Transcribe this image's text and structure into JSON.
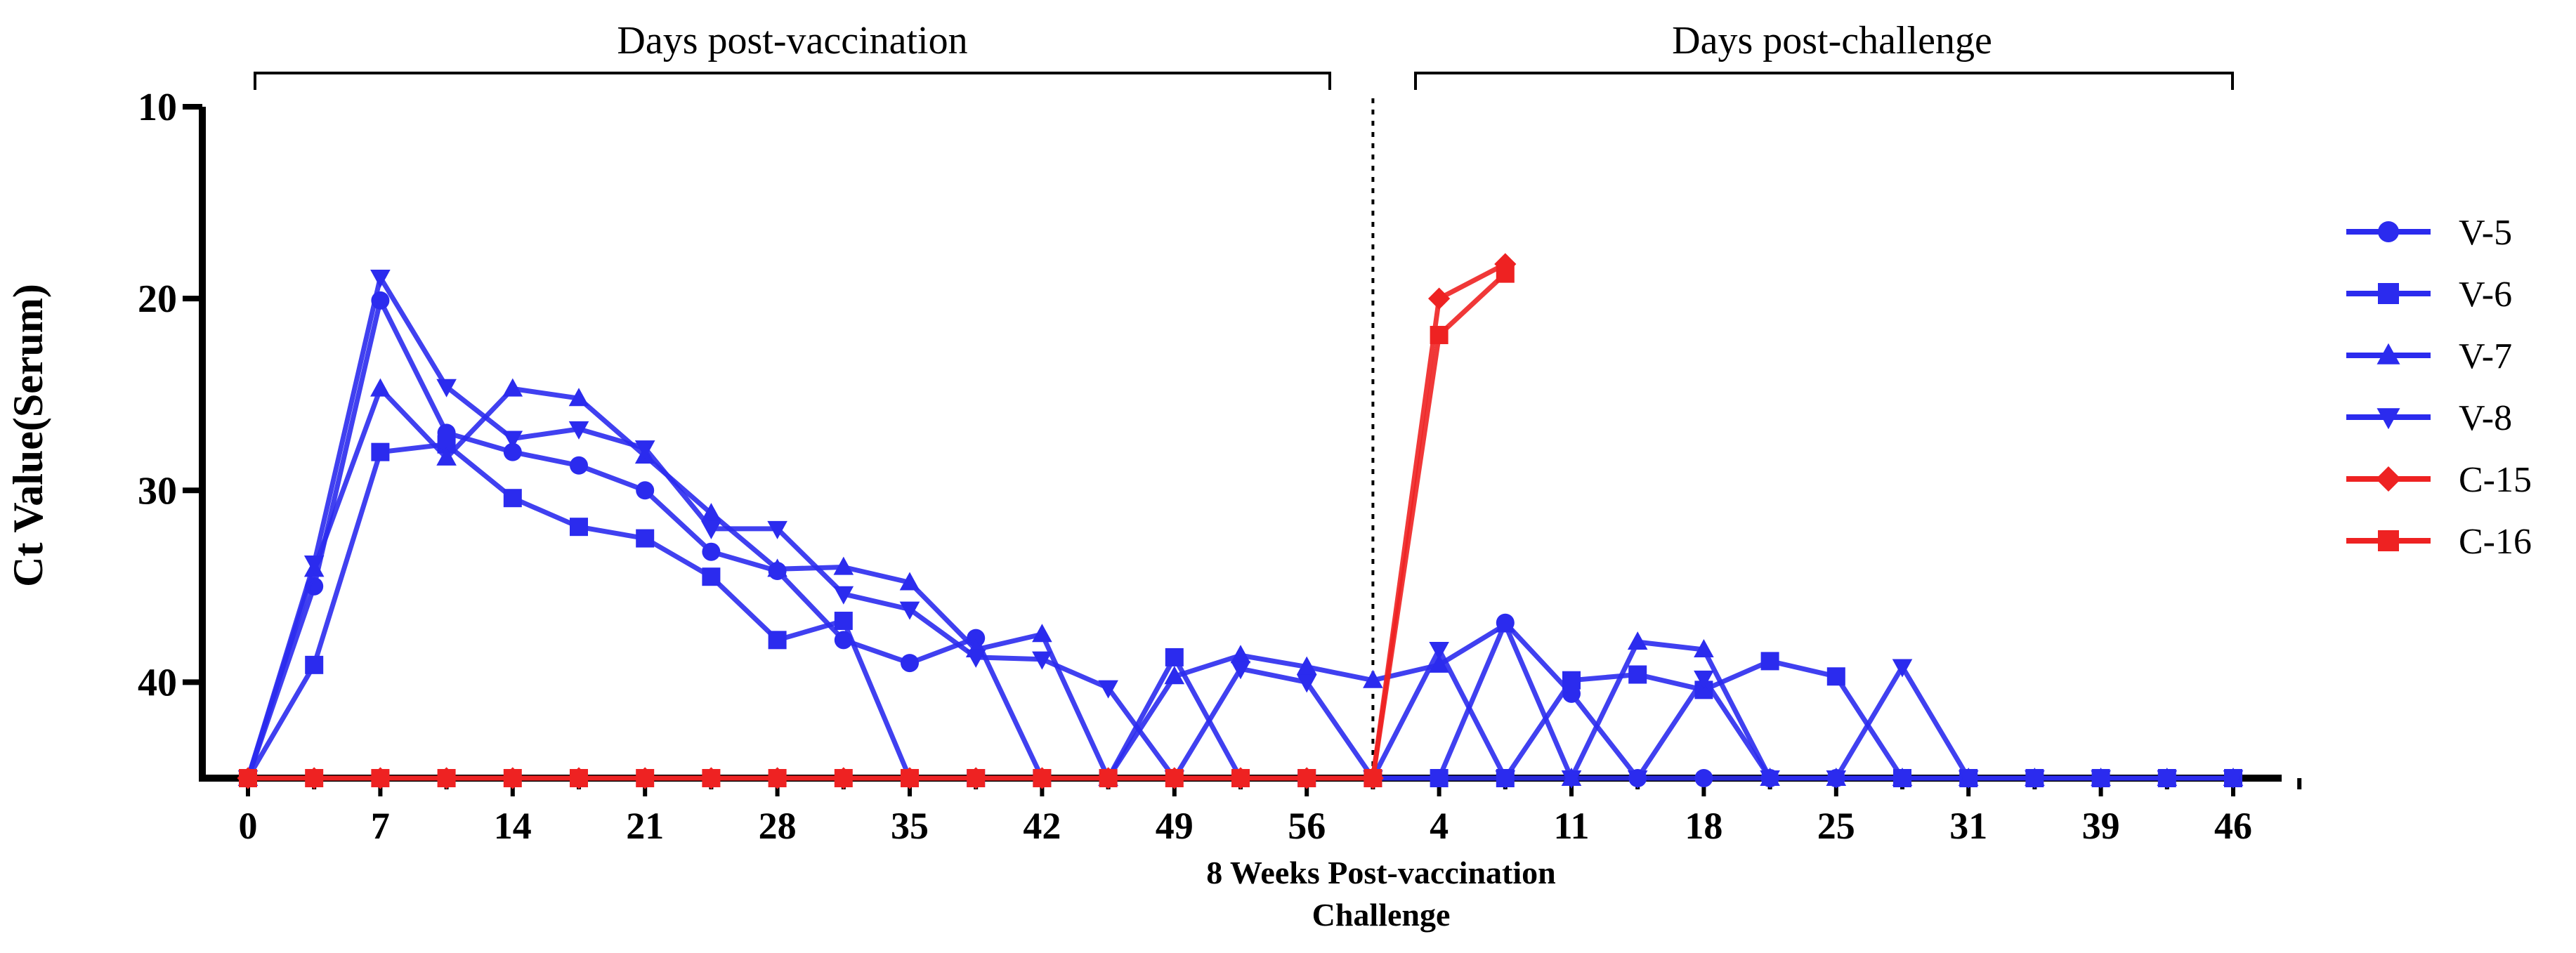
{
  "chart_data": {
    "type": "line",
    "ylabel": "Ct Value(Serum)",
    "ylim": [
      45,
      10
    ],
    "yticks": [
      10,
      20,
      30,
      40
    ],
    "y_inverted": true,
    "xlabel_line1": "8 Weeks Post-vaccination",
    "xlabel_line2": "Challenge",
    "header_left": "Days post-vaccination",
    "header_right": "Days post-challenge",
    "x_index_range": [
      0,
      31
    ],
    "divider_index": 17,
    "xtick_indices": [
      0,
      2,
      4,
      6,
      8,
      10,
      12,
      14,
      16,
      18,
      20,
      22,
      24,
      26,
      28,
      30
    ],
    "xtick_labels": [
      "0",
      "7",
      "14",
      "21",
      "28",
      "35",
      "42",
      "49",
      "56",
      "4",
      "11",
      "18",
      "25",
      "31",
      "39",
      "46"
    ],
    "series": [
      {
        "name": "V-5",
        "color": "#2b2bee",
        "marker": "circle",
        "points": [
          [
            0,
            45
          ],
          [
            1,
            35
          ],
          [
            2,
            20.1
          ],
          [
            3,
            27
          ],
          [
            4,
            28
          ],
          [
            5,
            28.7
          ],
          [
            6,
            30
          ],
          [
            7,
            33.2
          ],
          [
            8,
            34.2
          ],
          [
            9,
            37.8
          ],
          [
            10,
            39
          ],
          [
            11,
            37.7
          ],
          [
            12,
            45
          ],
          [
            13,
            45
          ],
          [
            14,
            45
          ],
          [
            15,
            45
          ],
          [
            16,
            45
          ],
          [
            17,
            45
          ],
          [
            18,
            45
          ],
          [
            19,
            36.9
          ],
          [
            20,
            40.6
          ],
          [
            21,
            45
          ],
          [
            22,
            45
          ],
          [
            23,
            45
          ],
          [
            24,
            45
          ],
          [
            25,
            45
          ],
          [
            26,
            45
          ],
          [
            27,
            45
          ],
          [
            28,
            45
          ],
          [
            29,
            45
          ],
          [
            30,
            45
          ]
        ]
      },
      {
        "name": "V-6",
        "color": "#2b2bee",
        "marker": "square",
        "points": [
          [
            0,
            45
          ],
          [
            1,
            39.1
          ],
          [
            2,
            28
          ],
          [
            3,
            27.6
          ],
          [
            4,
            30.4
          ],
          [
            5,
            31.9
          ],
          [
            6,
            32.5
          ],
          [
            7,
            34.5
          ],
          [
            8,
            37.8
          ],
          [
            9,
            36.8
          ],
          [
            10,
            45
          ],
          [
            11,
            45
          ],
          [
            12,
            45
          ],
          [
            13,
            45
          ],
          [
            14,
            38.7
          ],
          [
            15,
            45
          ],
          [
            16,
            45
          ],
          [
            17,
            45
          ],
          [
            18,
            45
          ],
          [
            19,
            45
          ],
          [
            20,
            39.9
          ],
          [
            21,
            39.6
          ],
          [
            22,
            40.4
          ],
          [
            23,
            38.9
          ],
          [
            24,
            39.7
          ],
          [
            25,
            45
          ],
          [
            26,
            45
          ],
          [
            27,
            45
          ],
          [
            28,
            45
          ],
          [
            29,
            45
          ],
          [
            30,
            45
          ]
        ]
      },
      {
        "name": "V-7",
        "color": "#2b2bee",
        "marker": "triangle-up",
        "points": [
          [
            0,
            45
          ],
          [
            1,
            34.1
          ],
          [
            2,
            24.7
          ],
          [
            3,
            28.3
          ],
          [
            4,
            24.7
          ],
          [
            5,
            25.2
          ],
          [
            6,
            28.2
          ],
          [
            7,
            31.2
          ],
          [
            8,
            34.1
          ],
          [
            9,
            34
          ],
          [
            10,
            34.8
          ],
          [
            11,
            38.3
          ],
          [
            12,
            37.5
          ],
          [
            13,
            45
          ],
          [
            14,
            39.7
          ],
          [
            15,
            38.6
          ],
          [
            16,
            39.2
          ],
          [
            17,
            39.9
          ],
          [
            18,
            39.1
          ],
          [
            19,
            37
          ],
          [
            20,
            45
          ],
          [
            21,
            37.9
          ],
          [
            22,
            38.3
          ],
          [
            23,
            45
          ],
          [
            24,
            45
          ],
          [
            25,
            45
          ],
          [
            26,
            45
          ],
          [
            27,
            45
          ],
          [
            28,
            45
          ],
          [
            29,
            45
          ],
          [
            30,
            45
          ]
        ]
      },
      {
        "name": "V-8",
        "color": "#2b2bee",
        "marker": "triangle-down",
        "points": [
          [
            0,
            45
          ],
          [
            1,
            33.8
          ],
          [
            2,
            18.9
          ],
          [
            3,
            24.6
          ],
          [
            4,
            27.3
          ],
          [
            5,
            26.8
          ],
          [
            6,
            27.8
          ],
          [
            7,
            32
          ],
          [
            8,
            32
          ],
          [
            9,
            35.4
          ],
          [
            10,
            36.2
          ],
          [
            11,
            38.7
          ],
          [
            12,
            38.8
          ],
          [
            13,
            40.3
          ],
          [
            14,
            45
          ],
          [
            15,
            39.3
          ],
          [
            16,
            40
          ],
          [
            17,
            45
          ],
          [
            18,
            38.3
          ],
          [
            19,
            45
          ],
          [
            20,
            45
          ],
          [
            21,
            45
          ],
          [
            22,
            39.8
          ],
          [
            23,
            45
          ],
          [
            24,
            45
          ],
          [
            25,
            39.2
          ],
          [
            26,
            45
          ],
          [
            27,
            45
          ],
          [
            28,
            45
          ],
          [
            29,
            45
          ],
          [
            30,
            45
          ]
        ]
      },
      {
        "name": "C-15",
        "color": "#ee2222",
        "marker": "diamond",
        "points": [
          [
            0,
            45
          ],
          [
            1,
            45
          ],
          [
            2,
            45
          ],
          [
            3,
            45
          ],
          [
            4,
            45
          ],
          [
            5,
            45
          ],
          [
            6,
            45
          ],
          [
            7,
            45
          ],
          [
            8,
            45
          ],
          [
            9,
            45
          ],
          [
            10,
            45
          ],
          [
            11,
            45
          ],
          [
            12,
            45
          ],
          [
            13,
            45
          ],
          [
            14,
            45
          ],
          [
            15,
            45
          ],
          [
            16,
            45
          ],
          [
            17,
            45
          ],
          [
            18,
            20
          ],
          [
            19,
            18.2
          ]
        ]
      },
      {
        "name": "C-16",
        "color": "#ee2222",
        "marker": "square",
        "points": [
          [
            0,
            45
          ],
          [
            1,
            45
          ],
          [
            2,
            45
          ],
          [
            3,
            45
          ],
          [
            4,
            45
          ],
          [
            5,
            45
          ],
          [
            6,
            45
          ],
          [
            7,
            45
          ],
          [
            8,
            45
          ],
          [
            9,
            45
          ],
          [
            10,
            45
          ],
          [
            11,
            45
          ],
          [
            12,
            45
          ],
          [
            13,
            45
          ],
          [
            14,
            45
          ],
          [
            15,
            45
          ],
          [
            16,
            45
          ],
          [
            17,
            45
          ],
          [
            18,
            21.9
          ],
          [
            19,
            18.7
          ]
        ]
      }
    ]
  }
}
